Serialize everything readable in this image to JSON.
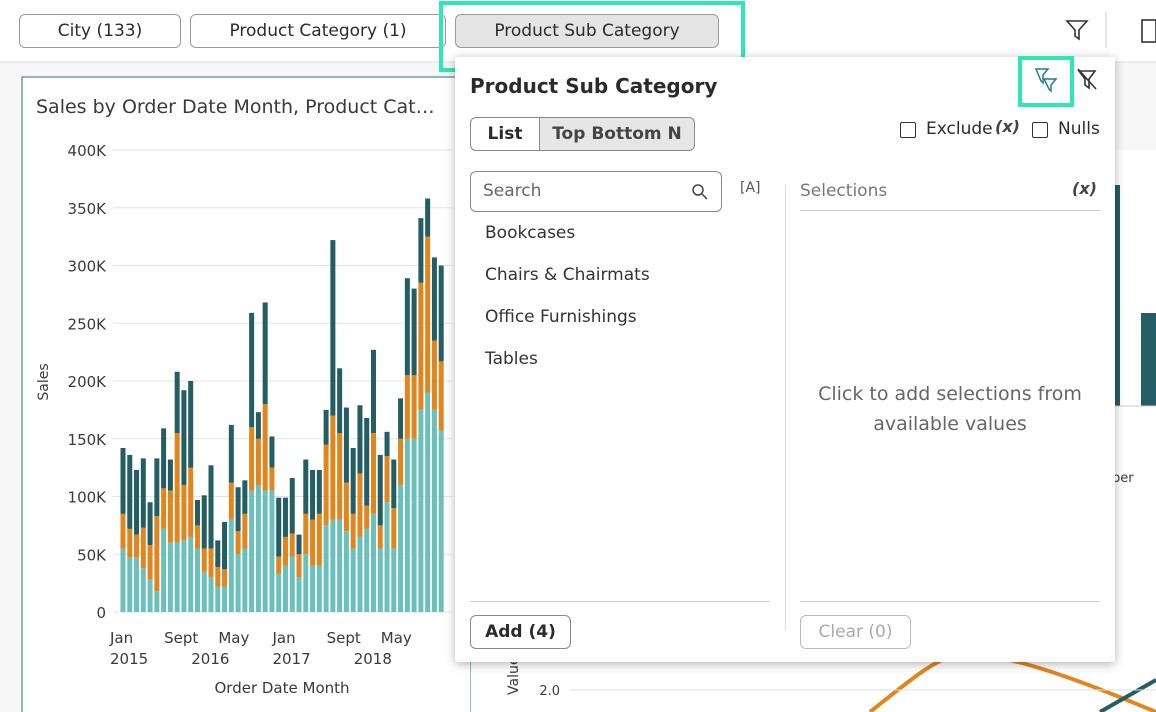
{
  "filter_bar": {
    "filters": [
      "City (133)",
      "Product Category (1)",
      "Product Sub Category"
    ]
  },
  "popup": {
    "title": "Product Sub Category",
    "tabs": [
      "List",
      "Top Bottom N"
    ],
    "exclude": "Exclude",
    "exclude_icon": "(x)",
    "nulls": "Nulls",
    "search_placeholder": "Search",
    "case_icon": "[A]",
    "selections_label": "Selections",
    "selections_icon": "(x)",
    "items": [
      "Bookcases",
      "Chairs & Chairmats",
      "Office Furnishings",
      "Tables"
    ],
    "empty_message": "Click to add selections from available values",
    "add_button": "Add (4)",
    "clear_button": "Clear (0)"
  },
  "background_fragments": {
    "axis_label": "Value",
    "tick": "2.0",
    "category_fragment": "ber"
  },
  "chart_data": {
    "type": "stacked_bar",
    "title": "Sales by Order Date Month, Product Cat…",
    "ylabel": "Sales",
    "xlabel": "Order Date Month",
    "categories": [
      "Jan",
      null,
      null,
      null,
      null,
      null,
      null,
      null,
      "Sept",
      null,
      null,
      null,
      null,
      null,
      null,
      null,
      "May",
      null,
      null,
      null,
      null,
      null,
      null,
      null,
      "Jan",
      null,
      null,
      null,
      null,
      null,
      null,
      null,
      "Sept",
      null,
      null,
      null,
      null,
      null,
      null,
      null,
      "May",
      null,
      null,
      null,
      null,
      null,
      null,
      null
    ],
    "category_years": [
      "2015",
      null,
      null,
      null,
      null,
      null,
      null,
      null,
      null,
      null,
      null,
      null,
      "2016",
      null,
      null,
      null,
      null,
      null,
      null,
      null,
      null,
      null,
      null,
      null,
      "2017",
      null,
      null,
      null,
      null,
      null,
      null,
      null,
      null,
      null,
      null,
      null,
      "2018",
      null,
      null,
      null,
      null,
      null,
      null,
      null,
      null,
      null,
      null,
      null
    ],
    "ylim": [
      0,
      400000
    ],
    "yticks": [
      0,
      {
        "value": 50000,
        "label": "50K"
      },
      {
        "value": 100000,
        "label": "100K"
      },
      {
        "value": 150000,
        "label": "150K"
      },
      {
        "value": 200000,
        "label": "200K"
      },
      {
        "value": 250000,
        "label": "250K"
      },
      {
        "value": 300000,
        "label": "300K"
      },
      {
        "value": 350000,
        "label": "350K"
      },
      {
        "value": 400000,
        "label": "400K"
      }
    ],
    "grid": true,
    "series": [
      {
        "color": "#6cc0bb",
        "values": [
          55000,
          47000,
          47000,
          38000,
          28000,
          18000,
          72000,
          60000,
          60000,
          62000,
          65000,
          55000,
          35000,
          30000,
          22000,
          22000,
          80000,
          50000,
          55000,
          105000,
          110000,
          105000,
          105000,
          33000,
          40000,
          48000,
          30000,
          50000,
          40000,
          40000,
          75000,
          80000,
          80000,
          70000,
          55000,
          65000,
          72000,
          85000,
          55000,
          95000,
          55000,
          110000,
          150000,
          150000,
          175000,
          190000,
          175000,
          157000
        ]
      },
      {
        "color": "#e0861f",
        "values": [
          30000,
          25000,
          20000,
          35000,
          30000,
          65000,
          35000,
          45000,
          95000,
          48000,
          60000,
          20000,
          20000,
          25000,
          17000,
          15000,
          32000,
          20000,
          30000,
          55000,
          40000,
          75000,
          20000,
          15000,
          25000,
          20000,
          20000,
          35000,
          40000,
          45000,
          70000,
          90000,
          75000,
          42000,
          30000,
          55000,
          20000,
          70000,
          20000,
          40000,
          35000,
          40000,
          55000,
          55000,
          110000,
          135000,
          60000,
          60000
        ]
      },
      {
        "color": "#245d63",
        "values": [
          57000,
          64000,
          56000,
          60000,
          37000,
          50000,
          52000,
          27000,
          53000,
          82000,
          75000,
          22000,
          46000,
          72000,
          23000,
          41000,
          50000,
          38000,
          29000,
          99000,
          23000,
          88000,
          27000,
          51000,
          34000,
          48000,
          17000,
          47000,
          43000,
          38000,
          30000,
          152000,
          56000,
          65000,
          57000,
          59000,
          76000,
          72000,
          61000,
          21000,
          42000,
          35000,
          84000,
          75000,
          56000,
          33000,
          72000,
          83000
        ]
      }
    ]
  }
}
